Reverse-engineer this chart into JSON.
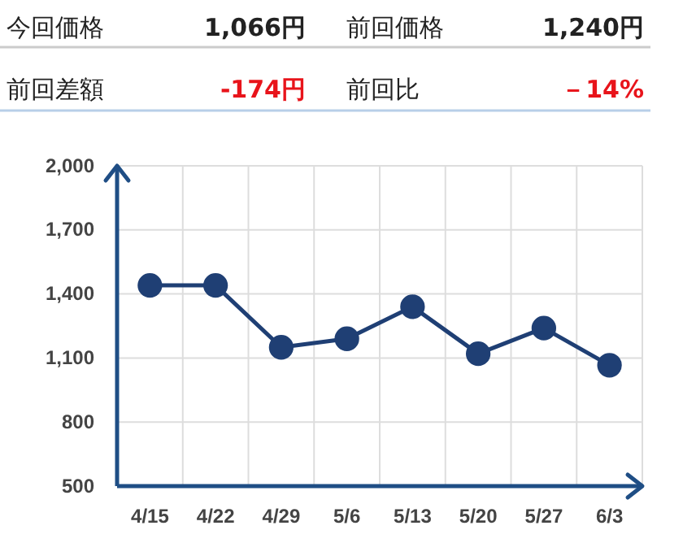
{
  "chart_data": {
    "type": "line",
    "categories": [
      "4/15",
      "4/22",
      "4/29",
      "5/6",
      "5/13",
      "5/20",
      "5/27",
      "6/3"
    ],
    "series": [
      {
        "color": "#1f3f74",
        "values": [
          1440,
          1440,
          1150,
          1190,
          1340,
          1120,
          1240,
          1066
        ]
      }
    ],
    "ylim": [
      500,
      2000
    ],
    "yticks": [
      {
        "value": 500,
        "label": "500"
      },
      {
        "value": 800,
        "label": "800"
      },
      {
        "value": 1100,
        "label": "1,100"
      },
      {
        "value": 1400,
        "label": "1,400"
      },
      {
        "value": 1700,
        "label": "1,700"
      },
      {
        "value": 2000,
        "label": "2,000"
      }
    ],
    "grid": true,
    "marker": "circle",
    "line_style": "solid",
    "annotations": [
      "今回価格",
      "1,066円",
      "前回価格",
      "1,240円",
      "前回差額",
      "-174円",
      "前回比",
      "－14%"
    ]
  }
}
